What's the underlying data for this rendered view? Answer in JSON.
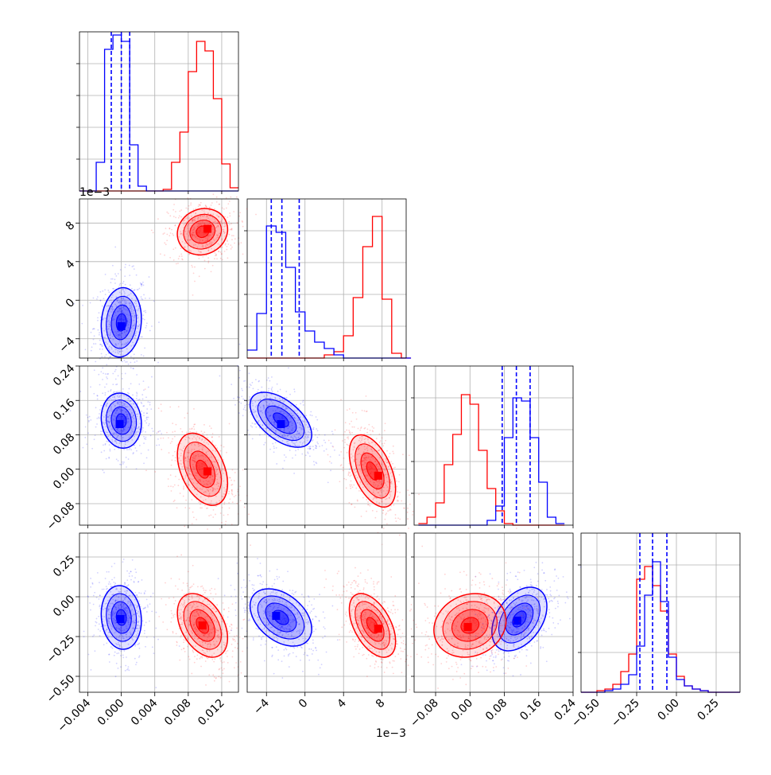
{
  "chart_data": {
    "type": "corner",
    "title": "",
    "series": [
      {
        "name": "",
        "color": "#0000ff"
      },
      {
        "name": "",
        "color": "#ff0000"
      }
    ],
    "parameters": [
      {
        "index": 0,
        "range": [
          -0.005,
          0.014
        ],
        "tick_values": [
          -0.004,
          0.0,
          0.004,
          0.008,
          0.012
        ],
        "tick_labels": [
          "−0.004",
          "0.000",
          "0.004",
          "0.008",
          "0.012"
        ],
        "offset_text": ""
      },
      {
        "index": 1,
        "range": [
          -0.006,
          0.0105
        ],
        "tick_values": [
          -0.004,
          0.0,
          0.004,
          0.008
        ],
        "tick_labels": [
          "−4",
          "0",
          "4",
          "8"
        ],
        "offset_text": "1e−3"
      },
      {
        "index": 2,
        "range": [
          -0.13,
          0.24
        ],
        "tick_values": [
          -0.08,
          0.0,
          0.08,
          0.16,
          0.24
        ],
        "tick_labels": [
          "−0.08",
          "0.00",
          "0.08",
          "0.16",
          "0.24"
        ],
        "offset_text": ""
      },
      {
        "index": 3,
        "range": [
          -0.6,
          0.4
        ],
        "tick_values": [
          -0.5,
          -0.25,
          0.0,
          0.25
        ],
        "tick_labels": [
          "−0.50",
          "−0.25",
          "0.00",
          "0.25"
        ],
        "offset_text": ""
      }
    ],
    "diagonal_histograms": [
      {
        "parameter": 0,
        "bin_edges": [
          -0.005,
          -0.004,
          -0.003,
          -0.002,
          -0.001,
          0.0,
          0.001,
          0.002,
          0.003,
          0.004,
          0.005,
          0.006,
          0.007,
          0.008,
          0.009,
          0.01,
          0.011,
          0.012,
          0.013,
          0.014
        ],
        "blue": [
          0,
          0,
          0.18,
          0.89,
          0.98,
          0.94,
          0.29,
          0.03,
          0,
          0,
          0,
          0,
          0,
          0,
          0,
          0,
          0,
          0,
          0
        ],
        "red": [
          0,
          0,
          0,
          0,
          0,
          0,
          0,
          0,
          0,
          0,
          0.01,
          0.18,
          0.37,
          0.75,
          0.94,
          0.88,
          0.58,
          0.17,
          0.02
        ],
        "blue_quantiles": [
          -0.0012,
          0.0,
          0.001
        ]
      },
      {
        "parameter": 1,
        "bin_edges": [
          -0.006,
          -0.005,
          -0.004,
          -0.003,
          -0.002,
          -0.001,
          0.0,
          0.001,
          0.002,
          0.003,
          0.004,
          0.005,
          0.006,
          0.007,
          0.008,
          0.009,
          0.01,
          0.011
        ],
        "blue": [
          0.05,
          0.28,
          0.83,
          0.79,
          0.57,
          0.29,
          0.17,
          0.1,
          0.06,
          0.02,
          0,
          0,
          0,
          0,
          0,
          0,
          0
        ],
        "red": [
          0,
          0,
          0,
          0,
          0,
          0,
          0,
          0,
          0.02,
          0.04,
          0.14,
          0.38,
          0.7,
          0.89,
          0.37,
          0.03,
          0
        ],
        "blue_quantiles": [
          -0.0035,
          -0.0024,
          -0.0006
        ]
      },
      {
        "parameter": 2,
        "bin_edges": [
          -0.12,
          -0.1,
          -0.08,
          -0.06,
          -0.04,
          -0.02,
          0.0,
          0.02,
          0.04,
          0.06,
          0.08,
          0.1,
          0.12,
          0.14,
          0.16,
          0.18,
          0.2,
          0.22
        ],
        "blue": [
          0,
          0,
          0,
          0,
          0,
          0,
          0,
          0,
          0.03,
          0.12,
          0.55,
          0.8,
          0.78,
          0.55,
          0.27,
          0.05,
          0.01
        ],
        "red": [
          0.01,
          0.05,
          0.14,
          0.38,
          0.57,
          0.82,
          0.76,
          0.47,
          0.23,
          0.09,
          0.01,
          0,
          0,
          0,
          0,
          0,
          0
        ],
        "blue_quantiles": [
          0.075,
          0.108,
          0.14
        ]
      },
      {
        "parameter": 3,
        "bin_edges": [
          -0.6,
          -0.55,
          -0.5,
          -0.45,
          -0.4,
          -0.35,
          -0.3,
          -0.25,
          -0.2,
          -0.15,
          -0.1,
          -0.05,
          0.0,
          0.05,
          0.1,
          0.15,
          0.2,
          0.25,
          0.3,
          0.35,
          0.4
        ],
        "blue": [
          0,
          0,
          0,
          0.01,
          0.02,
          0.05,
          0.11,
          0.29,
          0.61,
          0.82,
          0.57,
          0.22,
          0.08,
          0.04,
          0.02,
          0.01,
          0,
          0,
          0,
          0
        ],
        "red": [
          0,
          0,
          0.01,
          0.02,
          0.05,
          0.13,
          0.24,
          0.71,
          0.79,
          0.67,
          0.51,
          0.24,
          0.1,
          0.04,
          0.02,
          0.01,
          0,
          0,
          0,
          0
        ],
        "blue_quantiles": [
          -0.23,
          -0.15,
          -0.06
        ]
      }
    ],
    "pair_panels": [
      {
        "row": 1,
        "col": 0,
        "blue": {
          "center": [
            0.0,
            -0.0023
          ],
          "peak": [
            0.0,
            -0.0027
          ],
          "sd": [
            0.0012,
            0.0018
          ],
          "corr": 0.1
        },
        "red": {
          "center": [
            0.0097,
            0.0071
          ],
          "peak": [
            0.0103,
            0.0074
          ],
          "sd": [
            0.0015,
            0.0012
          ],
          "corr": 0.1
        }
      },
      {
        "row": 2,
        "col": 0,
        "blue": {
          "center": [
            0.0,
            0.113
          ],
          "peak": [
            -0.0002,
            0.105
          ],
          "sd": [
            0.0012,
            0.032
          ],
          "corr": -0.1
        },
        "red": {
          "center": [
            0.0097,
            0.0
          ],
          "peak": [
            0.0103,
            -0.005
          ],
          "sd": [
            0.0015,
            0.042
          ],
          "corr": -0.4
        }
      },
      {
        "row": 2,
        "col": 1,
        "blue": {
          "center": [
            -0.0025,
            0.115
          ],
          "peak": [
            -0.0025,
            0.105
          ],
          "sd": [
            0.0016,
            0.032
          ],
          "corr": -0.55
        },
        "red": {
          "center": [
            0.007,
            -0.004
          ],
          "peak": [
            0.0076,
            -0.015
          ],
          "sd": [
            0.0012,
            0.042
          ],
          "corr": -0.5
        }
      },
      {
        "row": 3,
        "col": 0,
        "blue": {
          "center": [
            0.0,
            -0.13
          ],
          "peak": [
            -0.0001,
            -0.14
          ],
          "sd": [
            0.0012,
            0.1
          ],
          "corr": -0.1
        },
        "red": {
          "center": [
            0.0097,
            -0.18
          ],
          "peak": [
            0.0097,
            -0.18
          ],
          "sd": [
            0.0015,
            0.1
          ],
          "corr": -0.4
        }
      },
      {
        "row": 3,
        "col": 1,
        "blue": {
          "center": [
            -0.0025,
            -0.13
          ],
          "peak": [
            -0.003,
            -0.12
          ],
          "sd": [
            0.0016,
            0.09
          ],
          "corr": -0.4
        },
        "red": {
          "center": [
            0.007,
            -0.18
          ],
          "peak": [
            0.0076,
            -0.2
          ],
          "sd": [
            0.0012,
            0.1
          ],
          "corr": -0.5
        }
      },
      {
        "row": 3,
        "col": 2,
        "blue": {
          "center": [
            0.115,
            -0.14
          ],
          "peak": [
            0.11,
            -0.15
          ],
          "sd": [
            0.032,
            0.1
          ],
          "corr": 0.4
        },
        "red": {
          "center": [
            0.0,
            -0.18
          ],
          "peak": [
            -0.005,
            -0.19
          ],
          "sd": [
            0.042,
            0.1
          ],
          "corr": 0.15
        }
      }
    ],
    "grid": true,
    "legend": "none"
  }
}
